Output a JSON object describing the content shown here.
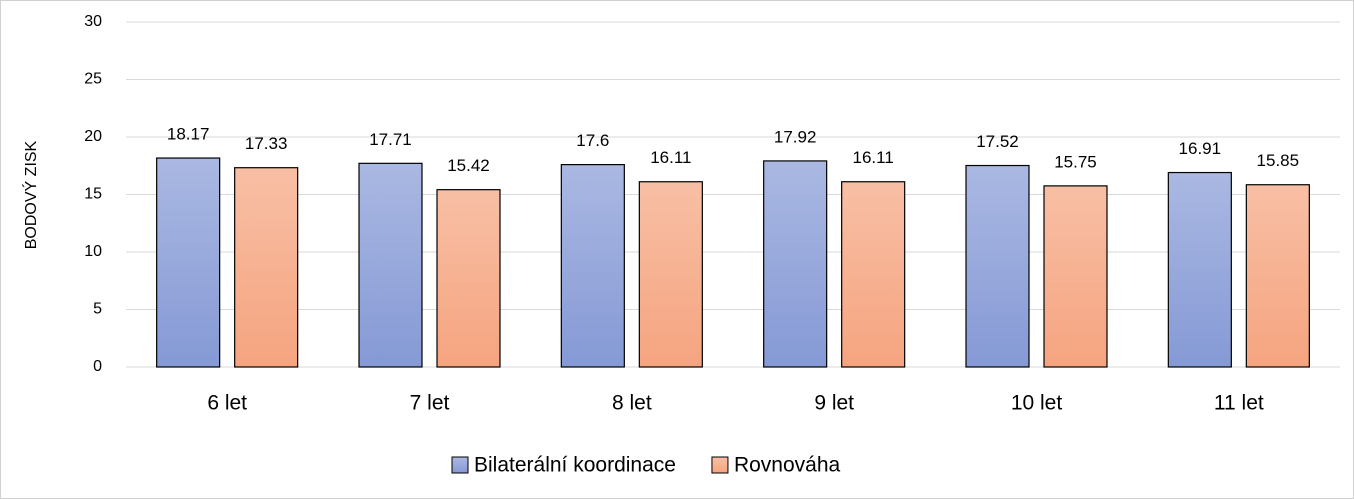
{
  "chart_data": {
    "type": "bar",
    "y_axis_label": "BODOVÝ ZISK",
    "categories": [
      "6 let",
      "7 let",
      "8 let",
      "9 let",
      "10 let",
      "11 let"
    ],
    "series": [
      {
        "name": "Bilaterální koordinace",
        "color": "#8599d5",
        "values": [
          18.17,
          17.71,
          17.6,
          17.92,
          17.52,
          16.91
        ]
      },
      {
        "name": "Rovnováha",
        "color": "#f5a47f",
        "values": [
          17.33,
          15.42,
          16.11,
          16.11,
          15.75,
          15.85
        ]
      }
    ],
    "ylim": [
      0,
      30
    ],
    "yticks": [
      0,
      5,
      10,
      15,
      20,
      25,
      30
    ],
    "grid": true,
    "legend": "bottom"
  }
}
